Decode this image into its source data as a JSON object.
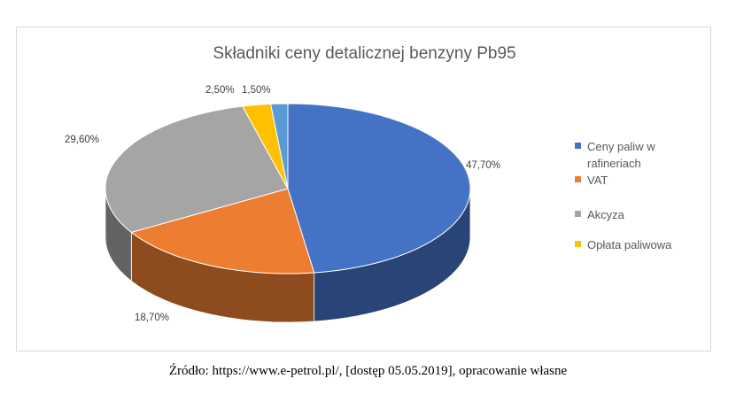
{
  "chart_data": {
    "type": "pie",
    "title": "Składniki ceny detalicznej benzyny Pb95",
    "slices": [
      {
        "label": "Ceny paliw w rafineriach",
        "value": 47.7,
        "display": "47,70%",
        "color": "#4472c4"
      },
      {
        "label": "VAT",
        "value": 18.7,
        "display": "18,70%",
        "color": "#ed7d31"
      },
      {
        "label": "Akcyza",
        "value": 29.6,
        "display": "29,60%",
        "color": "#a5a5a5"
      },
      {
        "label": "Opłata paliwowa",
        "value": 2.5,
        "display": "2,50%",
        "color": "#ffc000"
      },
      {
        "label": "",
        "value": 1.5,
        "display": "1,50%",
        "color": "#5b9bd5"
      }
    ],
    "legend_position": "right",
    "style": "3d"
  },
  "legend": [
    {
      "label": "Ceny paliw w rafineriach",
      "color": "#4472c4"
    },
    {
      "label": "VAT",
      "color": "#ed7d31"
    },
    {
      "label": "Akcyza",
      "color": "#a5a5a5"
    },
    {
      "label": "Opłata paliwowa",
      "color": "#ffc000"
    }
  ],
  "source": "Źródło: https://www.e-petrol.pl/, [dostęp 05.05.2019], opracowanie własne"
}
